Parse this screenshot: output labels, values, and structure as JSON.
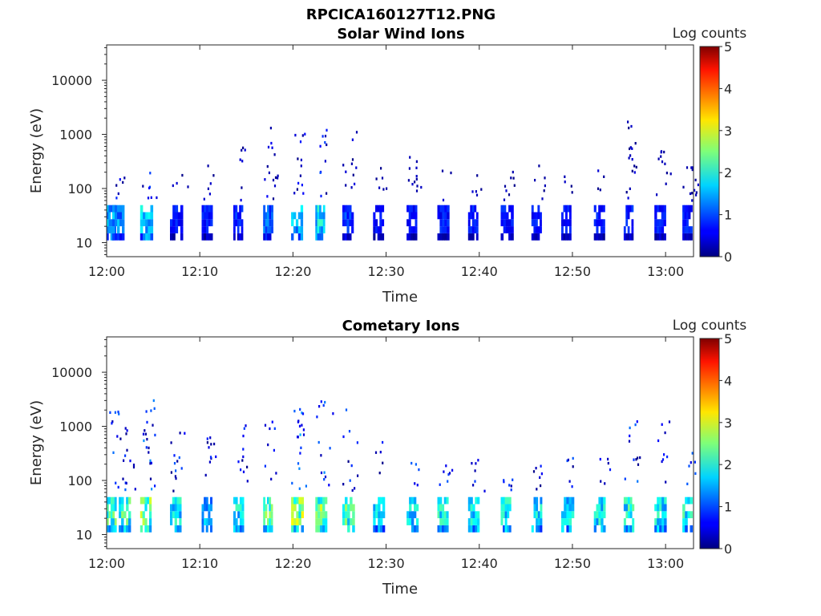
{
  "figure_title": "RPCICA160127T12.PNG",
  "chart_data": [
    {
      "type": "heatmap",
      "title": "Solar Wind Ions",
      "xlabel": "Time",
      "ylabel": "Energy (eV)",
      "x_ticks": [
        "12:00",
        "12:10",
        "12:20",
        "12:30",
        "12:40",
        "12:50",
        "13:00"
      ],
      "x_tick_minutes": [
        0,
        10,
        20,
        30,
        40,
        50,
        60
      ],
      "xlim_minutes": [
        0,
        63
      ],
      "y_scale": "log",
      "ylim": [
        5.5,
        45000
      ],
      "y_ticks": [
        "10",
        "100",
        "1000",
        "10000"
      ],
      "y_tick_values": [
        10,
        100,
        1000,
        10000
      ],
      "colorbar": {
        "label": "Log counts",
        "range": [
          0,
          5
        ],
        "ticks": [
          "0",
          "1",
          "2",
          "3",
          "4",
          "5"
        ],
        "colormap": "jet"
      },
      "bursts": [
        {
          "t": 0.0,
          "counts": 1.6,
          "high": 0.0
        },
        {
          "t": 0.6,
          "counts": 1.5,
          "high": 0.3
        },
        {
          "t": 3.6,
          "counts": 1.8,
          "high": 0.4
        },
        {
          "t": 6.8,
          "counts": 0.8,
          "high": 0.3
        },
        {
          "t": 10.2,
          "counts": 0.8,
          "high": 0.4
        },
        {
          "t": 13.6,
          "counts": 0.9,
          "high": 0.6
        },
        {
          "t": 16.8,
          "counts": 1.2,
          "high": 0.8
        },
        {
          "t": 19.8,
          "counts": 1.7,
          "high": 0.9
        },
        {
          "t": 22.4,
          "counts": 1.9,
          "high": 0.8
        },
        {
          "t": 25.3,
          "counts": 1.0,
          "high": 0.8
        },
        {
          "t": 28.6,
          "counts": 0.7,
          "high": 0.4
        },
        {
          "t": 32.2,
          "counts": 0.8,
          "high": 0.5
        },
        {
          "t": 35.5,
          "counts": 0.8,
          "high": 0.4
        },
        {
          "t": 38.8,
          "counts": 0.8,
          "high": 0.3
        },
        {
          "t": 42.3,
          "counts": 0.8,
          "high": 0.4
        },
        {
          "t": 45.6,
          "counts": 0.8,
          "high": 0.5
        },
        {
          "t": 48.8,
          "counts": 0.8,
          "high": 0.3
        },
        {
          "t": 52.3,
          "counts": 0.8,
          "high": 0.4
        },
        {
          "t": 55.5,
          "counts": 0.9,
          "high": 0.9
        },
        {
          "t": 58.8,
          "counts": 0.8,
          "high": 0.6
        },
        {
          "t": 61.8,
          "counts": 0.8,
          "high": 0.5
        }
      ]
    },
    {
      "type": "heatmap",
      "title": "Cometary Ions",
      "xlabel": "Time",
      "ylabel": "Energy (eV)",
      "x_ticks": [
        "12:00",
        "12:10",
        "12:20",
        "12:30",
        "12:40",
        "12:50",
        "13:00"
      ],
      "x_tick_minutes": [
        0,
        10,
        20,
        30,
        40,
        50,
        60
      ],
      "xlim_minutes": [
        0,
        63
      ],
      "y_scale": "log",
      "ylim": [
        5.5,
        45000
      ],
      "y_ticks": [
        "10",
        "100",
        "1000",
        "10000"
      ],
      "y_tick_values": [
        10,
        100,
        1000,
        10000
      ],
      "colorbar": {
        "label": "Log counts",
        "range": [
          0,
          5
        ],
        "ticks": [
          "0",
          "1",
          "2",
          "3",
          "4",
          "5"
        ],
        "colormap": "jet"
      },
      "bursts": [
        {
          "t": 0.0,
          "counts": 2.4,
          "high": 0.9
        },
        {
          "t": 1.3,
          "counts": 2.3,
          "high": 0.8
        },
        {
          "t": 3.6,
          "counts": 2.6,
          "high": 1.0
        },
        {
          "t": 6.8,
          "counts": 2.0,
          "high": 0.9
        },
        {
          "t": 10.2,
          "counts": 1.6,
          "high": 0.6
        },
        {
          "t": 13.6,
          "counts": 2.0,
          "high": 0.8
        },
        {
          "t": 16.8,
          "counts": 2.4,
          "high": 1.0
        },
        {
          "t": 19.8,
          "counts": 2.8,
          "high": 1.0
        },
        {
          "t": 22.4,
          "counts": 2.6,
          "high": 1.0
        },
        {
          "t": 25.3,
          "counts": 2.3,
          "high": 0.9
        },
        {
          "t": 28.6,
          "counts": 1.8,
          "high": 0.6
        },
        {
          "t": 32.2,
          "counts": 2.0,
          "high": 0.4
        },
        {
          "t": 35.5,
          "counts": 2.0,
          "high": 0.4
        },
        {
          "t": 38.8,
          "counts": 2.0,
          "high": 0.4
        },
        {
          "t": 42.3,
          "counts": 2.0,
          "high": 0.4
        },
        {
          "t": 45.6,
          "counts": 2.0,
          "high": 0.4
        },
        {
          "t": 48.8,
          "counts": 2.0,
          "high": 0.4
        },
        {
          "t": 52.3,
          "counts": 2.0,
          "high": 0.5
        },
        {
          "t": 55.5,
          "counts": 2.2,
          "high": 0.8
        },
        {
          "t": 58.8,
          "counts": 2.0,
          "high": 0.8
        },
        {
          "t": 61.8,
          "counts": 2.1,
          "high": 0.8
        }
      ]
    }
  ]
}
